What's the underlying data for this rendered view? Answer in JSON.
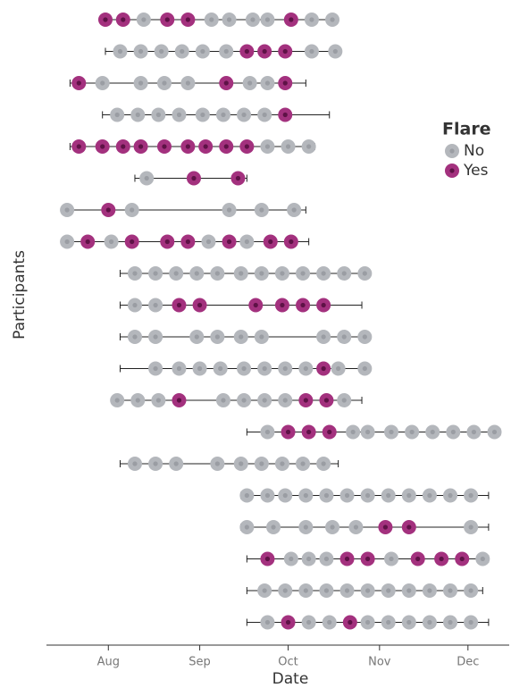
{
  "chart_data": {
    "type": "timeline",
    "xlabel": "Date",
    "ylabel": "Participants",
    "xlim": [
      192,
      349
    ],
    "xticks": [
      {
        "value": 213,
        "label": "Aug"
      },
      {
        "value": 244,
        "label": "Sep"
      },
      {
        "value": 274,
        "label": "Oct"
      },
      {
        "value": 305,
        "label": "Nov"
      },
      {
        "value": 335,
        "label": "Dec"
      }
    ],
    "legend": {
      "title": "Flare",
      "entries": [
        {
          "name": "No",
          "color": "#b4b7bc",
          "center": "#9a9da3"
        },
        {
          "name": "Yes",
          "color": "#a3317e",
          "center": "#5e1246"
        }
      ]
    },
    "rows": [
      {
        "start": 212,
        "end": 289,
        "dates": [
          212,
          218,
          225,
          233,
          240,
          248,
          254,
          262,
          267,
          275,
          282,
          289
        ],
        "flare": [
          "Yes",
          "Yes",
          "No",
          "Yes",
          "Yes",
          "No",
          "No",
          "No",
          "No",
          "Yes",
          "No",
          "No"
        ]
      },
      {
        "start": 212,
        "end": 291,
        "dates": [
          217,
          224,
          231,
          238,
          245,
          253,
          260,
          266,
          273,
          282,
          290
        ],
        "flare": [
          "No",
          "No",
          "No",
          "No",
          "No",
          "No",
          "Yes",
          "Yes",
          "Yes",
          "No",
          "No"
        ]
      },
      {
        "start": 200,
        "end": 280,
        "dates": [
          203,
          211,
          224,
          232,
          240,
          253,
          261,
          267,
          273
        ],
        "flare": [
          "Yes",
          "No",
          "No",
          "No",
          "No",
          "Yes",
          "No",
          "No",
          "Yes"
        ]
      },
      {
        "start": 211,
        "end": 288,
        "dates": [
          216,
          223,
          230,
          237,
          245,
          252,
          259,
          266,
          273
        ],
        "flare": [
          "No",
          "No",
          "No",
          "No",
          "No",
          "No",
          "No",
          "No",
          "Yes"
        ]
      },
      {
        "start": 200,
        "end": 283,
        "dates": [
          203,
          211,
          218,
          224,
          232,
          240,
          246,
          253,
          260,
          267,
          274,
          281
        ],
        "flare": [
          "Yes",
          "Yes",
          "Yes",
          "Yes",
          "Yes",
          "Yes",
          "Yes",
          "Yes",
          "Yes",
          "No",
          "No",
          "No"
        ]
      },
      {
        "start": 222,
        "end": 260,
        "dates": [
          226,
          242,
          257
        ],
        "flare": [
          "No",
          "Yes",
          "Yes"
        ]
      },
      {
        "start": 199,
        "end": 280,
        "dates": [
          199,
          213,
          221,
          254,
          265,
          276
        ],
        "flare": [
          "No",
          "Yes",
          "No",
          "No",
          "No",
          "No"
        ]
      },
      {
        "start": 199,
        "end": 281,
        "dates": [
          199,
          206,
          214,
          221,
          233,
          240,
          247,
          254,
          260,
          268,
          275
        ],
        "flare": [
          "No",
          "Yes",
          "No",
          "Yes",
          "Yes",
          "Yes",
          "No",
          "Yes",
          "No",
          "Yes",
          "Yes"
        ]
      },
      {
        "start": 217,
        "end": 300,
        "dates": [
          222,
          229,
          236,
          243,
          250,
          258,
          265,
          272,
          279,
          286,
          293,
          300
        ],
        "flare": [
          "No",
          "No",
          "No",
          "No",
          "No",
          "No",
          "No",
          "No",
          "No",
          "No",
          "No",
          "No"
        ]
      },
      {
        "start": 217,
        "end": 299,
        "dates": [
          222,
          229,
          237,
          244,
          263,
          272,
          279,
          286
        ],
        "flare": [
          "No",
          "No",
          "Yes",
          "Yes",
          "Yes",
          "Yes",
          "Yes",
          "Yes"
        ]
      },
      {
        "start": 217,
        "end": 300,
        "dates": [
          222,
          229,
          243,
          250,
          258,
          265,
          286,
          293,
          300
        ],
        "flare": [
          "No",
          "No",
          "No",
          "No",
          "No",
          "No",
          "No",
          "No",
          "No"
        ]
      },
      {
        "start": 217,
        "end": 300,
        "dates": [
          229,
          237,
          244,
          251,
          259,
          266,
          273,
          280,
          286,
          291,
          300
        ],
        "flare": [
          "No",
          "No",
          "No",
          "No",
          "No",
          "No",
          "No",
          "No",
          "Yes",
          "No",
          "No"
        ]
      },
      {
        "start": 215,
        "end": 299,
        "dates": [
          216,
          223,
          230,
          237,
          252,
          259,
          266,
          273,
          280,
          287,
          293
        ],
        "flare": [
          "No",
          "No",
          "No",
          "Yes",
          "No",
          "No",
          "No",
          "No",
          "Yes",
          "Yes",
          "No"
        ]
      },
      {
        "start": 260,
        "end": 346,
        "dates": [
          267,
          274,
          281,
          288,
          296,
          301,
          309,
          316,
          323,
          330,
          337,
          344
        ],
        "flare": [
          "No",
          "Yes",
          "Yes",
          "Yes",
          "No",
          "No",
          "No",
          "No",
          "No",
          "No",
          "No",
          "No"
        ]
      },
      {
        "start": 217,
        "end": 291,
        "dates": [
          222,
          229,
          236,
          250,
          258,
          265,
          272,
          279,
          286
        ],
        "flare": [
          "No",
          "No",
          "No",
          "No",
          "No",
          "No",
          "No",
          "No",
          "No"
        ]
      },
      {
        "start": 258,
        "end": 342,
        "dates": [
          260,
          267,
          273,
          280,
          287,
          294,
          301,
          308,
          315,
          322,
          329,
          336
        ],
        "flare": [
          "No",
          "No",
          "No",
          "No",
          "No",
          "No",
          "No",
          "No",
          "No",
          "No",
          "No",
          "No"
        ]
      },
      {
        "start": 258,
        "end": 342,
        "dates": [
          260,
          269,
          280,
          289,
          297,
          307,
          315,
          336
        ],
        "flare": [
          "No",
          "No",
          "No",
          "No",
          "No",
          "Yes",
          "Yes",
          "No"
        ]
      },
      {
        "start": 260,
        "end": 342,
        "dates": [
          267,
          275,
          281,
          287,
          294,
          301,
          309,
          318,
          326,
          333,
          340
        ],
        "flare": [
          "Yes",
          "No",
          "No",
          "No",
          "Yes",
          "Yes",
          "No",
          "Yes",
          "Yes",
          "Yes",
          "No"
        ]
      },
      {
        "start": 260,
        "end": 340,
        "dates": [
          266,
          273,
          280,
          287,
          294,
          301,
          308,
          315,
          322,
          329,
          336
        ],
        "flare": [
          "No",
          "No",
          "No",
          "No",
          "No",
          "No",
          "No",
          "No",
          "No",
          "No",
          "No"
        ]
      },
      {
        "start": 260,
        "end": 342,
        "dates": [
          267,
          274,
          281,
          288,
          295,
          301,
          308,
          315,
          322,
          329,
          336
        ],
        "flare": [
          "No",
          "Yes",
          "No",
          "No",
          "Yes",
          "No",
          "No",
          "No",
          "No",
          "No",
          "No"
        ]
      }
    ]
  }
}
